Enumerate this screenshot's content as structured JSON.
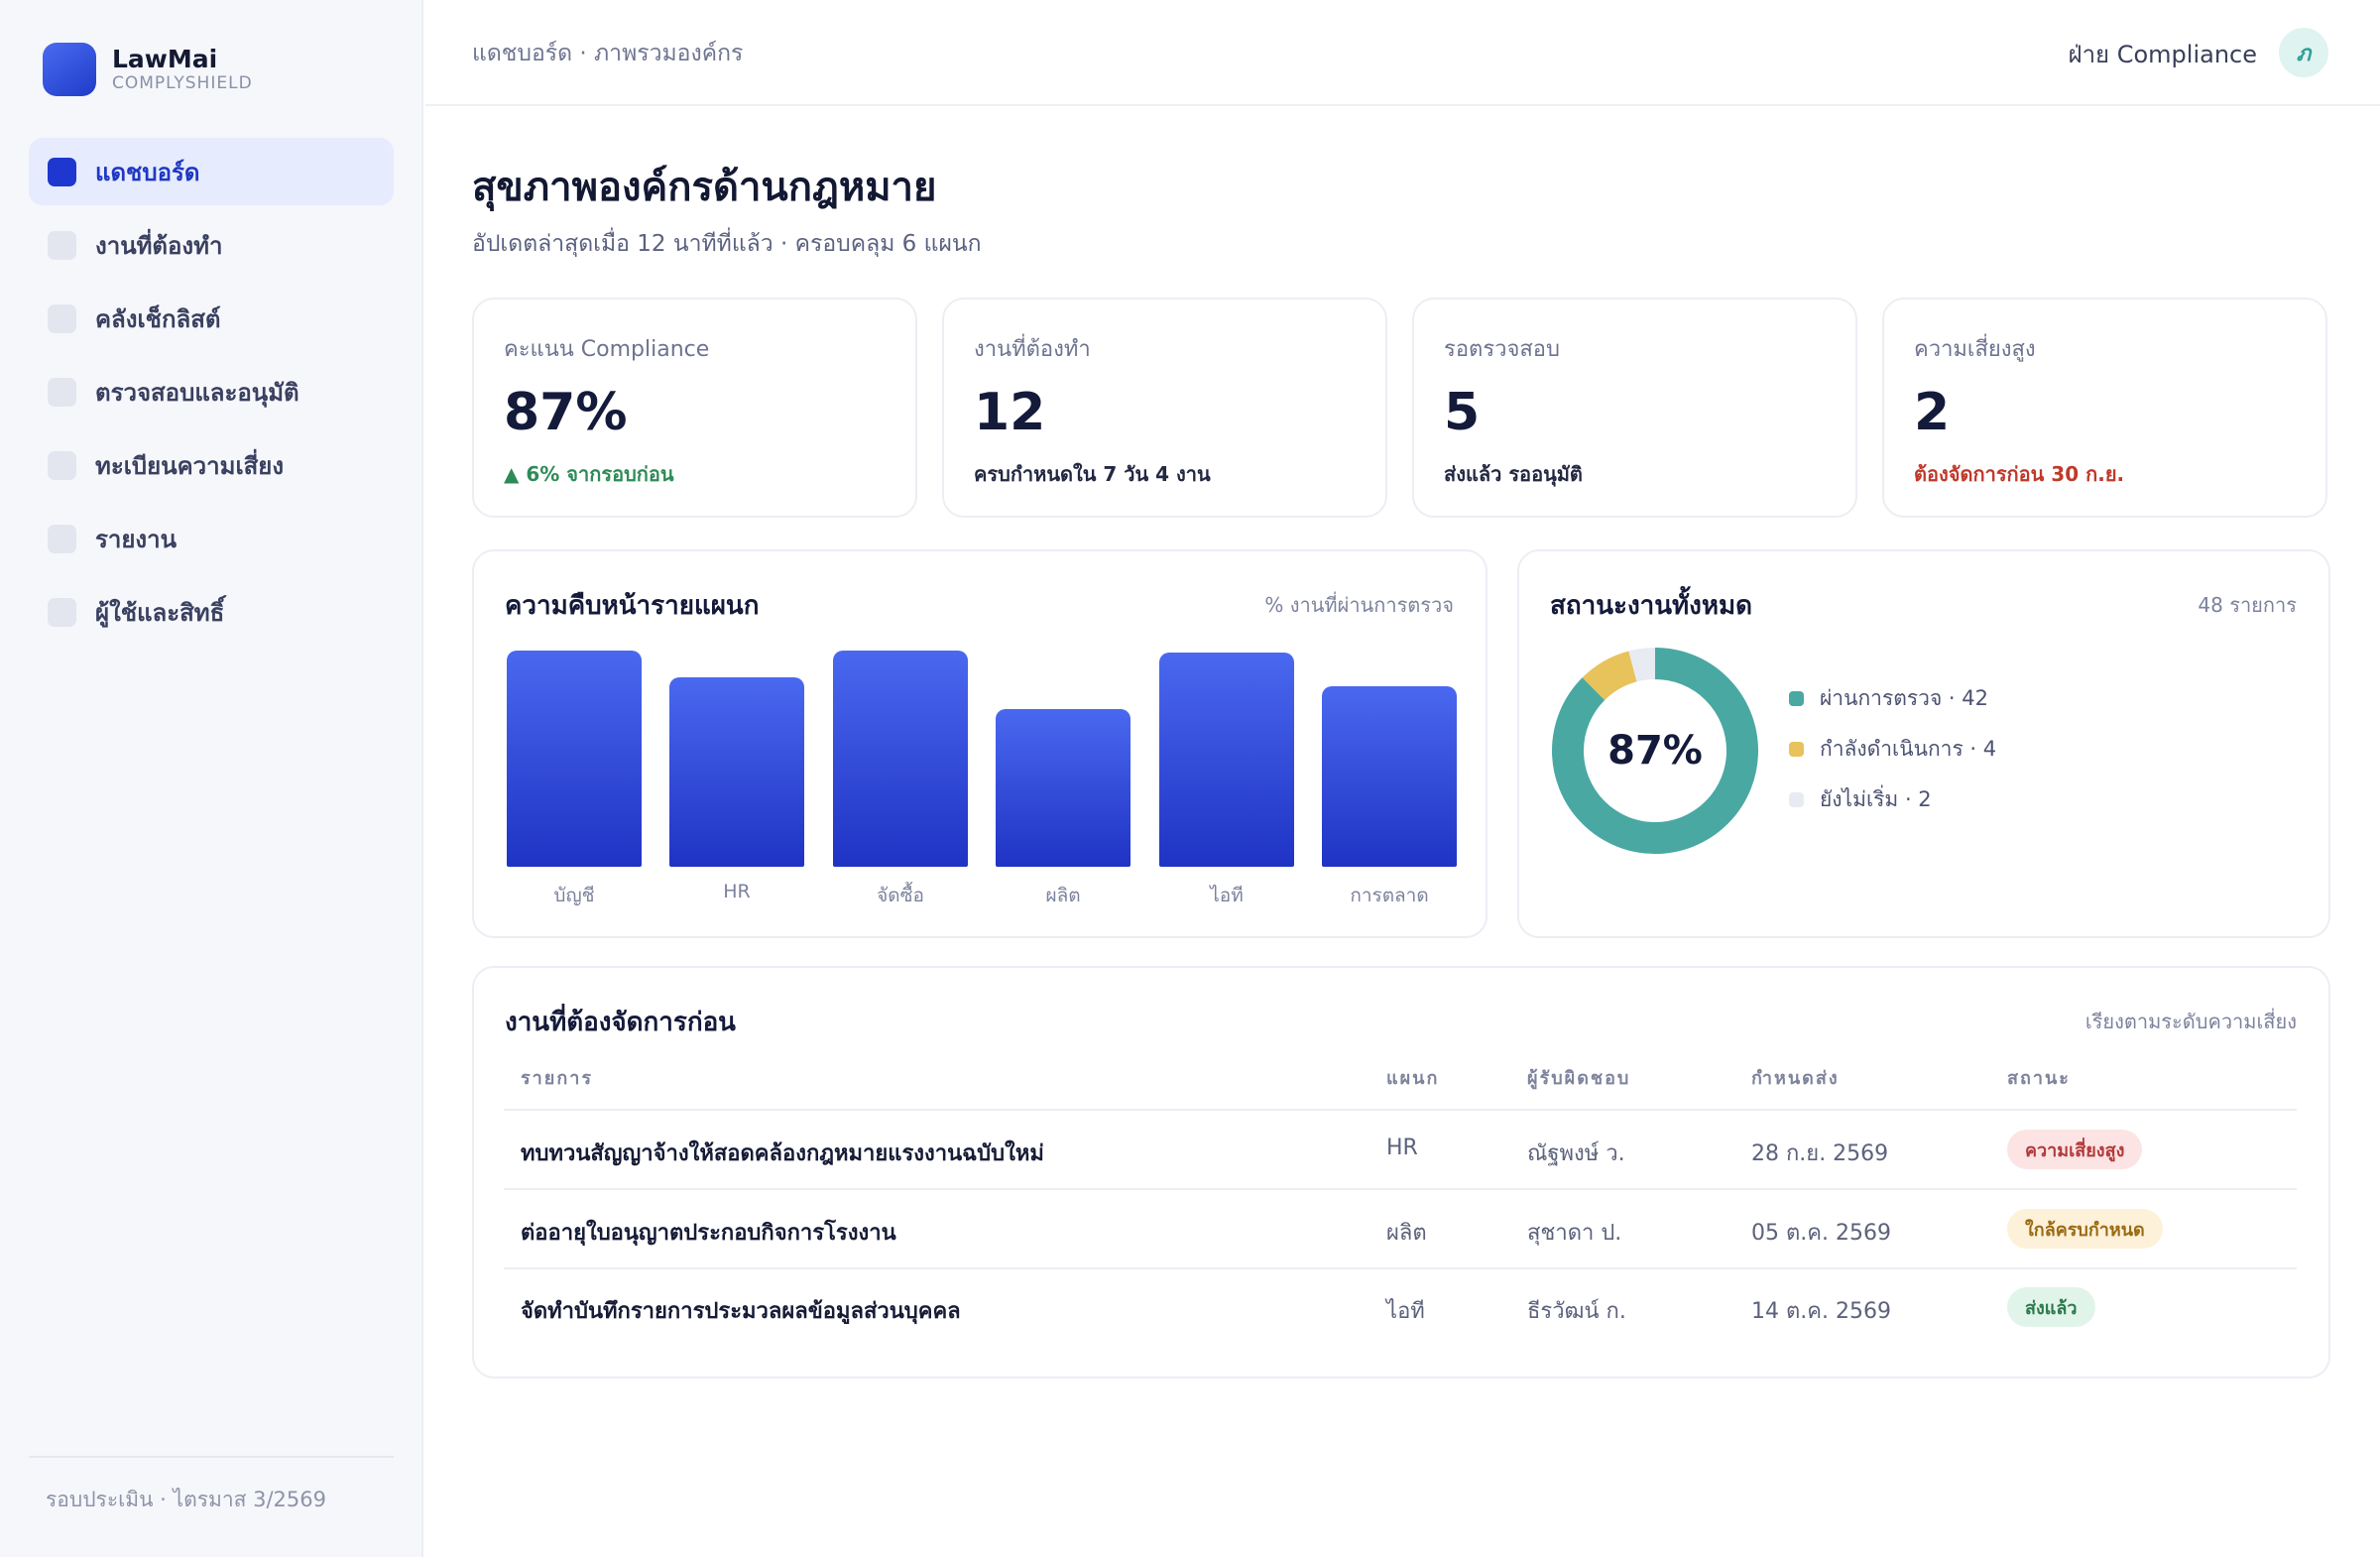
{
  "brand": {
    "name": "LawMai",
    "sub": "COMPLYSHIELD"
  },
  "sidebar": {
    "items": [
      {
        "label": "แดชบอร์ด",
        "active": true
      },
      {
        "label": "งานที่ต้องทำ"
      },
      {
        "label": "คลังเช็กลิสต์"
      },
      {
        "label": "ตรวจสอบและอนุมัติ"
      },
      {
        "label": "ทะเบียนความเสี่ยง"
      },
      {
        "label": "รายงาน"
      },
      {
        "label": "ผู้ใช้และสิทธิ์"
      }
    ],
    "footer": "รอบประเมิน · ไตรมาส 3/2569"
  },
  "topbar": {
    "breadcrumb": "แดชบอร์ด · ภาพรวมองค์กร",
    "department": "ฝ่าย Compliance",
    "avatar_letter": "ภ"
  },
  "header": {
    "title": "สุขภาพองค์กรด้านกฎหมาย",
    "subtitle": "อัปเดตล่าสุดเมื่อ 12 นาทีที่แล้ว · ครอบคลุม 6 แผนก"
  },
  "kpis": [
    {
      "label": "คะแนน Compliance",
      "value": "87%",
      "note": "▲ 6% จากรอบก่อน",
      "tone": "up"
    },
    {
      "label": "งานที่ต้องทำ",
      "value": "12",
      "note": "ครบกำหนดใน 7 วัน 4 งาน",
      "tone": "neutral"
    },
    {
      "label": "รอตรวจสอบ",
      "value": "5",
      "note": "ส่งแล้ว รออนุมัติ",
      "tone": "neutral"
    },
    {
      "label": "ความเสี่ยงสูง",
      "value": "2",
      "note": "ต้องจัดการก่อน 30 ก.ย.",
      "tone": "red"
    }
  ],
  "progress_card": {
    "title": "ความคืบหน้ารายแผนก",
    "meta": "% งานที่ผ่านการตรวจ"
  },
  "status_card": {
    "title": "สถานะงานทั้งหมด",
    "meta": "48 รายการ",
    "center": "87%",
    "legend": [
      {
        "label": "ผ่านการตรวจ · 42",
        "color": "#4aa8a3"
      },
      {
        "label": "กำลังดำเนินการ · 4",
        "color": "#e8c25a"
      },
      {
        "label": "ยังไม่เริ่ม · 2",
        "color": "#e9ebf2"
      }
    ]
  },
  "chart_data": [
    {
      "type": "bar",
      "categories": [
        "บัญชี",
        "HR",
        "จัดซื้อ",
        "ผลิต",
        "ไอที",
        "การตลาด"
      ],
      "values": [
        96,
        84,
        96,
        70,
        95,
        80
      ],
      "ylim": [
        0,
        100
      ],
      "title": "ความคืบหน้ารายแผนก",
      "ylabel": "% งานที่ผ่านการตรวจ",
      "color": "#2a43d6"
    },
    {
      "type": "pie",
      "categories": [
        "ผ่านการตรวจ",
        "กำลังดำเนินการ",
        "ยังไม่เริ่ม"
      ],
      "values": [
        42,
        4,
        2
      ],
      "title": "สถานะงานทั้งหมด",
      "colors": [
        "#4aa8a3",
        "#e8c25a",
        "#e9ebf2"
      ]
    }
  ],
  "table": {
    "title": "งานที่ต้องจัดการก่อน",
    "meta": "เรียงตามระดับความเสี่ยง",
    "headers": [
      "รายการ",
      "แผนก",
      "ผู้รับผิดชอบ",
      "กำหนดส่ง",
      "สถานะ"
    ],
    "rows": [
      {
        "item": "ทบทวนสัญญาจ้างให้สอดคล้องกฎหมายแรงงานฉบับใหม่",
        "dept": "HR",
        "owner": "ณัฐพงษ์ ว.",
        "due": "28 ก.ย. 2569",
        "status": "ความเสี่ยงสูง",
        "tone": "red"
      },
      {
        "item": "ต่ออายุใบอนุญาตประกอบกิจการโรงงาน",
        "dept": "ผลิต",
        "owner": "สุชาดา ป.",
        "due": "05 ต.ค. 2569",
        "status": "ใกล้ครบกำหนด",
        "tone": "amber"
      },
      {
        "item": "จัดทำบันทึกรายการประมวลผลข้อมูลส่วนบุคคล",
        "dept": "ไอที",
        "owner": "ธีรวัฒน์ ก.",
        "due": "14 ต.ค. 2569",
        "status": "ส่งแล้ว",
        "tone": "green"
      }
    ]
  }
}
